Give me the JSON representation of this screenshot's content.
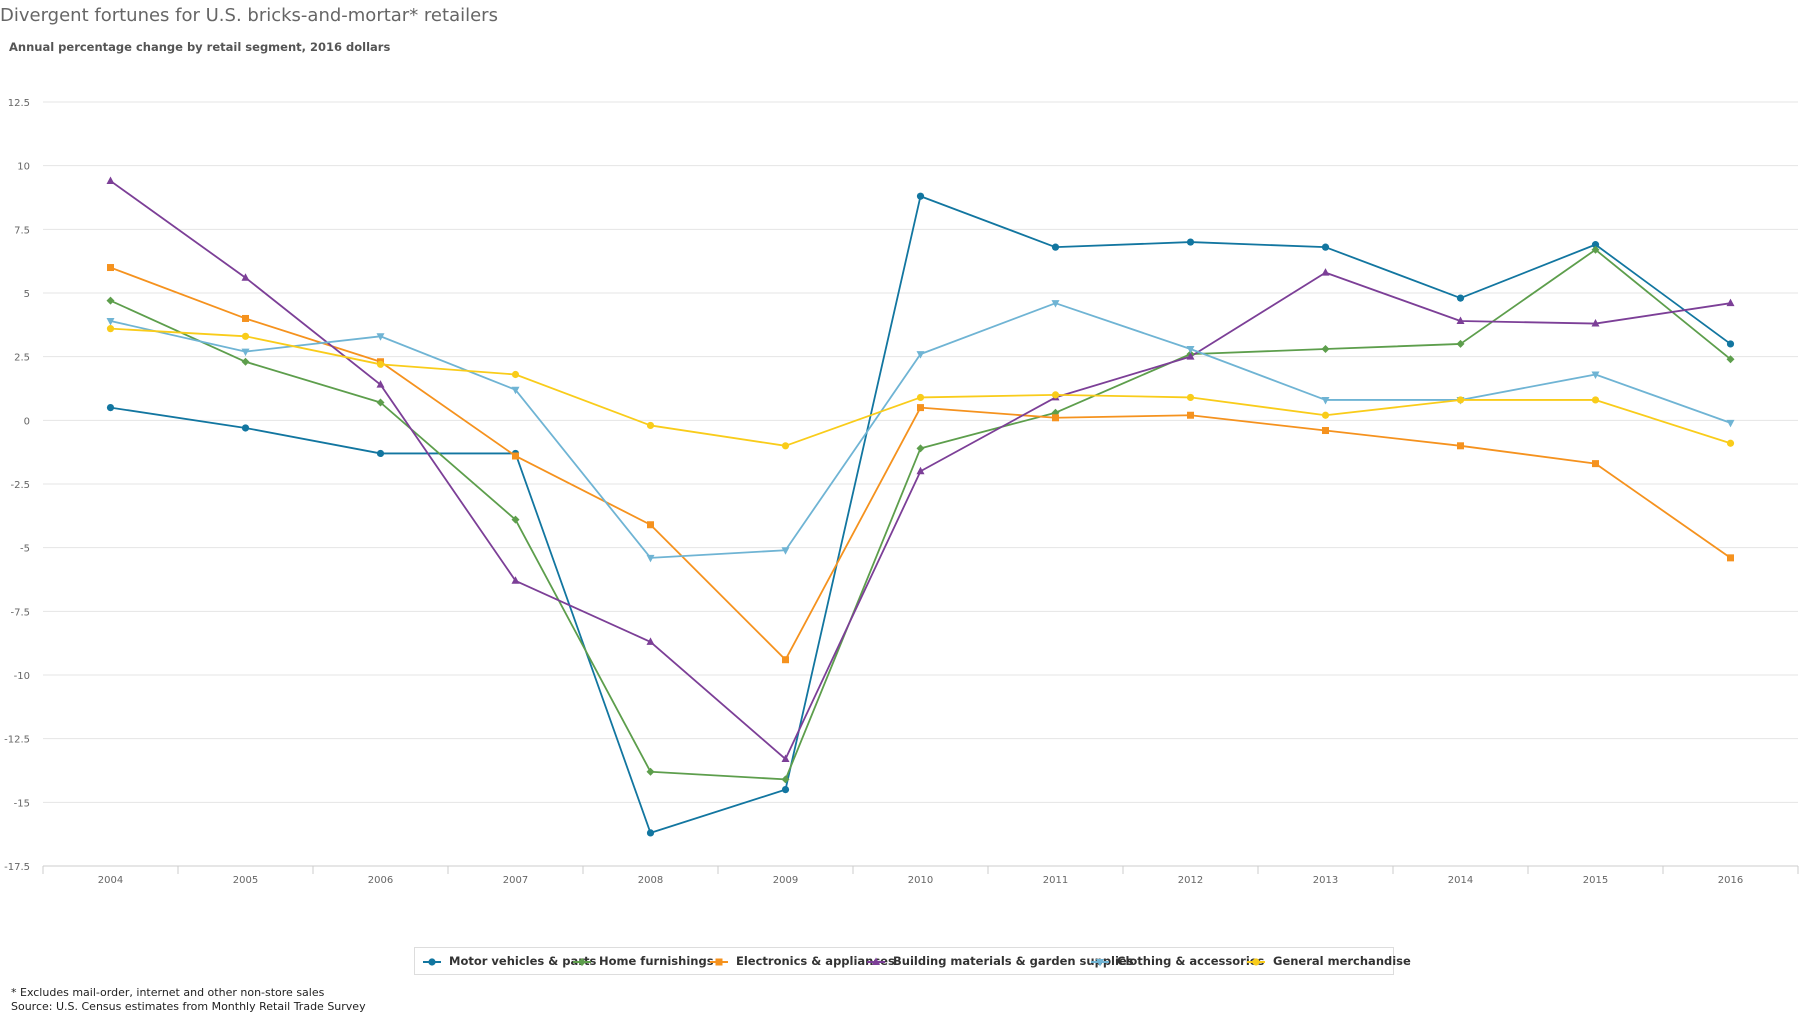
{
  "title": "Divergent fortunes for U.S. bricks-and-mortar* retailers",
  "subtitle": "Annual percentage change by retail segment, 2016 dollars",
  "footnotes": {
    "note": "* Excludes mail-order, internet and other non-store sales",
    "source": "Source: U.S. Census estimates from Monthly Retail Trade Survey"
  },
  "chart_data": {
    "type": "line",
    "title": "Divergent fortunes for U.S. bricks-and-mortar* retailers",
    "subtitle": "Annual percentage change by retail segment, 2016 dollars",
    "xlabel": "",
    "ylabel": "",
    "categories": [
      "2004",
      "2005",
      "2006",
      "2007",
      "2008",
      "2009",
      "2010",
      "2011",
      "2012",
      "2013",
      "2014",
      "2015",
      "2016"
    ],
    "ylim": [
      -17.5,
      12.5
    ],
    "yticks": [
      12.5,
      10,
      7.5,
      5,
      2.5,
      0,
      -2.5,
      -5,
      -7.5,
      -10,
      -12.5,
      -15,
      -17.5
    ],
    "grid": true,
    "legend_position": "bottom",
    "series": [
      {
        "name": "Motor vehicles & parts",
        "color": "#1276a0",
        "marker": "circle",
        "values": [
          0.5,
          -0.3,
          -1.3,
          -1.3,
          -16.2,
          -14.5,
          8.8,
          6.8,
          7.0,
          6.8,
          4.8,
          6.9,
          3.0
        ]
      },
      {
        "name": "Home furnishings",
        "color": "#5d9e4c",
        "marker": "diamond",
        "values": [
          4.7,
          2.3,
          0.7,
          -3.9,
          -13.8,
          -14.1,
          -1.1,
          0.3,
          2.6,
          2.8,
          3.0,
          6.7,
          2.4
        ]
      },
      {
        "name": "Electronics & appliances",
        "color": "#f5921e",
        "marker": "square",
        "values": [
          6.0,
          4.0,
          2.3,
          -1.4,
          -4.1,
          -9.4,
          0.5,
          0.1,
          0.2,
          -0.4,
          -1.0,
          -1.7,
          -5.4
        ]
      },
      {
        "name": "Building materials & garden supplies",
        "color": "#7c3f97",
        "marker": "triangle",
        "values": [
          9.4,
          5.6,
          1.4,
          -6.3,
          -8.7,
          -13.3,
          -2.0,
          0.9,
          2.5,
          5.8,
          3.9,
          3.8,
          4.6
        ]
      },
      {
        "name": "Clothing & accessories",
        "color": "#6fb4d4",
        "marker": "triangle-down",
        "values": [
          3.9,
          2.7,
          3.3,
          1.2,
          -5.4,
          -5.1,
          2.6,
          4.6,
          2.8,
          0.8,
          0.8,
          1.8,
          -0.1
        ]
      },
      {
        "name": "General merchandise",
        "color": "#f9cc1a",
        "marker": "circle",
        "values": [
          3.6,
          3.3,
          2.2,
          1.8,
          -0.2,
          -1.0,
          0.9,
          1.0,
          0.9,
          0.2,
          0.8,
          0.8,
          -0.9
        ]
      }
    ]
  }
}
